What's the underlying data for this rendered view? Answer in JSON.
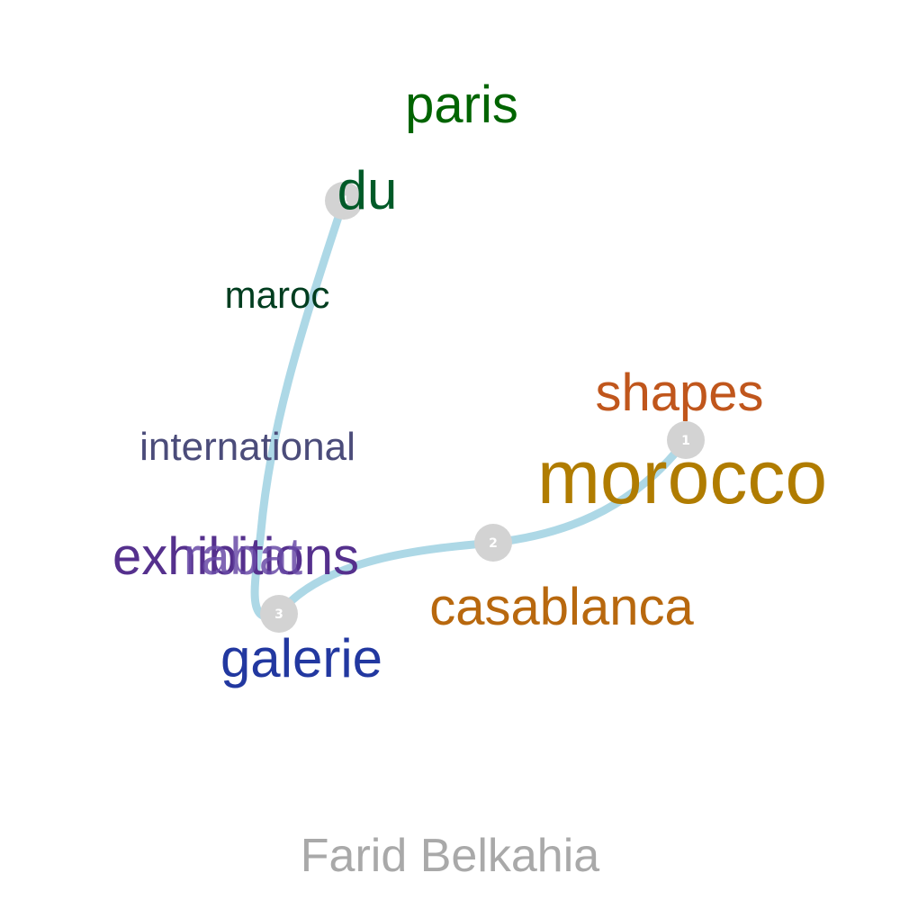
{
  "caption": "Farid Belkahia",
  "path": {
    "color": "#add8e6",
    "markers": [
      {
        "label": "1"
      },
      {
        "label": "2"
      },
      {
        "label": "3"
      },
      {
        "label": "4"
      }
    ],
    "marker_color": "#d3d3d3",
    "marker_text_color": "#ffffff"
  },
  "words": [
    {
      "text": "paris",
      "color": "#006400"
    },
    {
      "text": "du",
      "color": "#005a28"
    },
    {
      "text": "maroc",
      "color": "#003d1f"
    },
    {
      "text": "shapes",
      "color": "#c0561c"
    },
    {
      "text": "international",
      "color": "#4b4c7a"
    },
    {
      "text": "morocco",
      "color": "#b07c00"
    },
    {
      "text": "exhibitions",
      "color": "#55308d"
    },
    {
      "text": "rabat",
      "color": "#6a4ca8"
    },
    {
      "text": "casablanca",
      "color": "#b8680e"
    },
    {
      "text": "galerie",
      "color": "#2238a0"
    }
  ]
}
